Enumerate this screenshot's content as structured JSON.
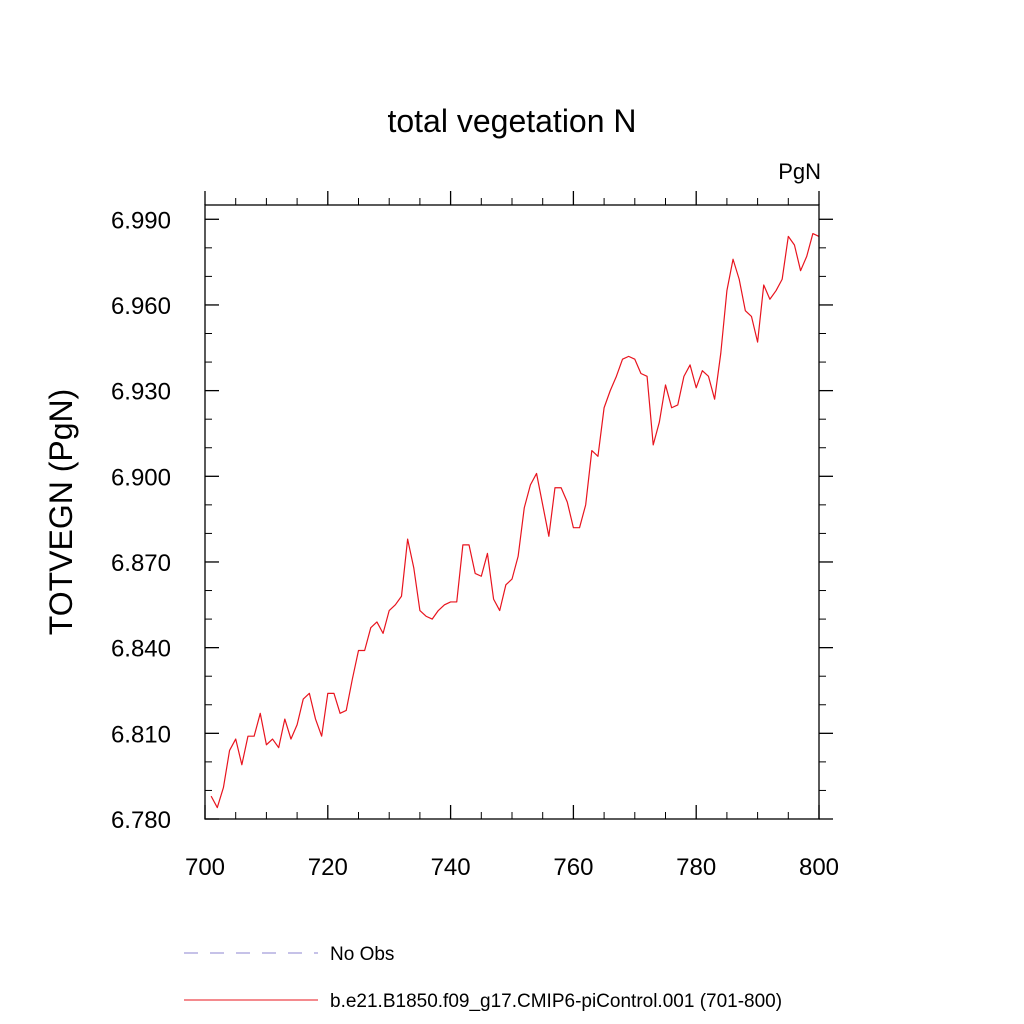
{
  "chart_data": {
    "type": "line",
    "title": "total vegetation N",
    "units_label": "PgN",
    "ylabel": "TOTVEGN  (PgN)",
    "xlabel": "",
    "xlim": [
      700,
      800
    ],
    "ylim": [
      6.78,
      6.995
    ],
    "x_ticks": [
      700,
      720,
      740,
      760,
      780,
      800
    ],
    "x_tick_labels": [
      "700",
      "720",
      "740",
      "760",
      "780",
      "800"
    ],
    "y_ticks": [
      6.78,
      6.81,
      6.84,
      6.87,
      6.9,
      6.93,
      6.96,
      6.99
    ],
    "y_tick_labels": [
      "6.780",
      "6.810",
      "6.840",
      "6.870",
      "6.900",
      "6.930",
      "6.960",
      "6.990"
    ],
    "grid": false,
    "legend_placement": "bottom",
    "series": [
      {
        "name": "b.e21.B1850.f09_g17.CMIP6-piControl.001 (701-800)",
        "color": "#e8141e",
        "x_start": 701,
        "values": [
          6.788,
          6.784,
          6.791,
          6.804,
          6.808,
          6.799,
          6.809,
          6.809,
          6.817,
          6.806,
          6.808,
          6.805,
          6.815,
          6.808,
          6.813,
          6.822,
          6.824,
          6.815,
          6.809,
          6.824,
          6.824,
          6.817,
          6.818,
          6.829,
          6.839,
          6.839,
          6.847,
          6.849,
          6.845,
          6.853,
          6.855,
          6.858,
          6.878,
          6.868,
          6.853,
          6.851,
          6.85,
          6.853,
          6.855,
          6.856,
          6.856,
          6.876,
          6.876,
          6.866,
          6.865,
          6.873,
          6.857,
          6.853,
          6.862,
          6.864,
          6.872,
          6.889,
          6.897,
          6.901,
          6.89,
          6.879,
          6.896,
          6.896,
          6.891,
          6.882,
          6.882,
          6.89,
          6.909,
          6.907,
          6.924,
          6.93,
          6.935,
          6.941,
          6.942,
          6.941,
          6.936,
          6.935,
          6.911,
          6.919,
          6.932,
          6.924,
          6.925,
          6.935,
          6.939,
          6.931,
          6.937,
          6.935,
          6.927,
          6.943,
          6.965,
          6.976,
          6.969,
          6.958,
          6.956,
          6.947,
          6.967,
          6.962,
          6.965,
          6.969,
          6.984,
          6.981,
          6.972,
          6.977,
          6.985,
          6.984
        ]
      },
      {
        "name": "No Obs",
        "color": "#8c84d0",
        "dashed": true,
        "values": []
      }
    ]
  }
}
